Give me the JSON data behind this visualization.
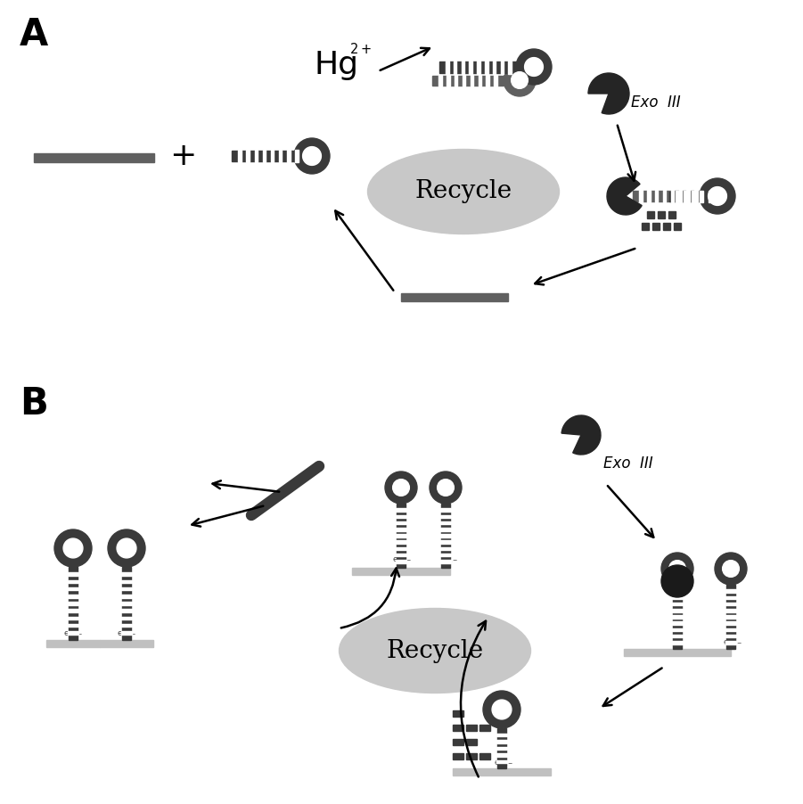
{
  "bg_color": "#ffffff",
  "dark_gray": "#3a3a3a",
  "mid_gray": "#606060",
  "ellipse_fill": "#c8c8c8",
  "electrode_color": "#c0c0c0",
  "recycle_text": "Recycle",
  "exo_text": "Exo  III",
  "label_A": "A",
  "label_B": "B",
  "hg_text": "Hg",
  "hg_super": "2+"
}
